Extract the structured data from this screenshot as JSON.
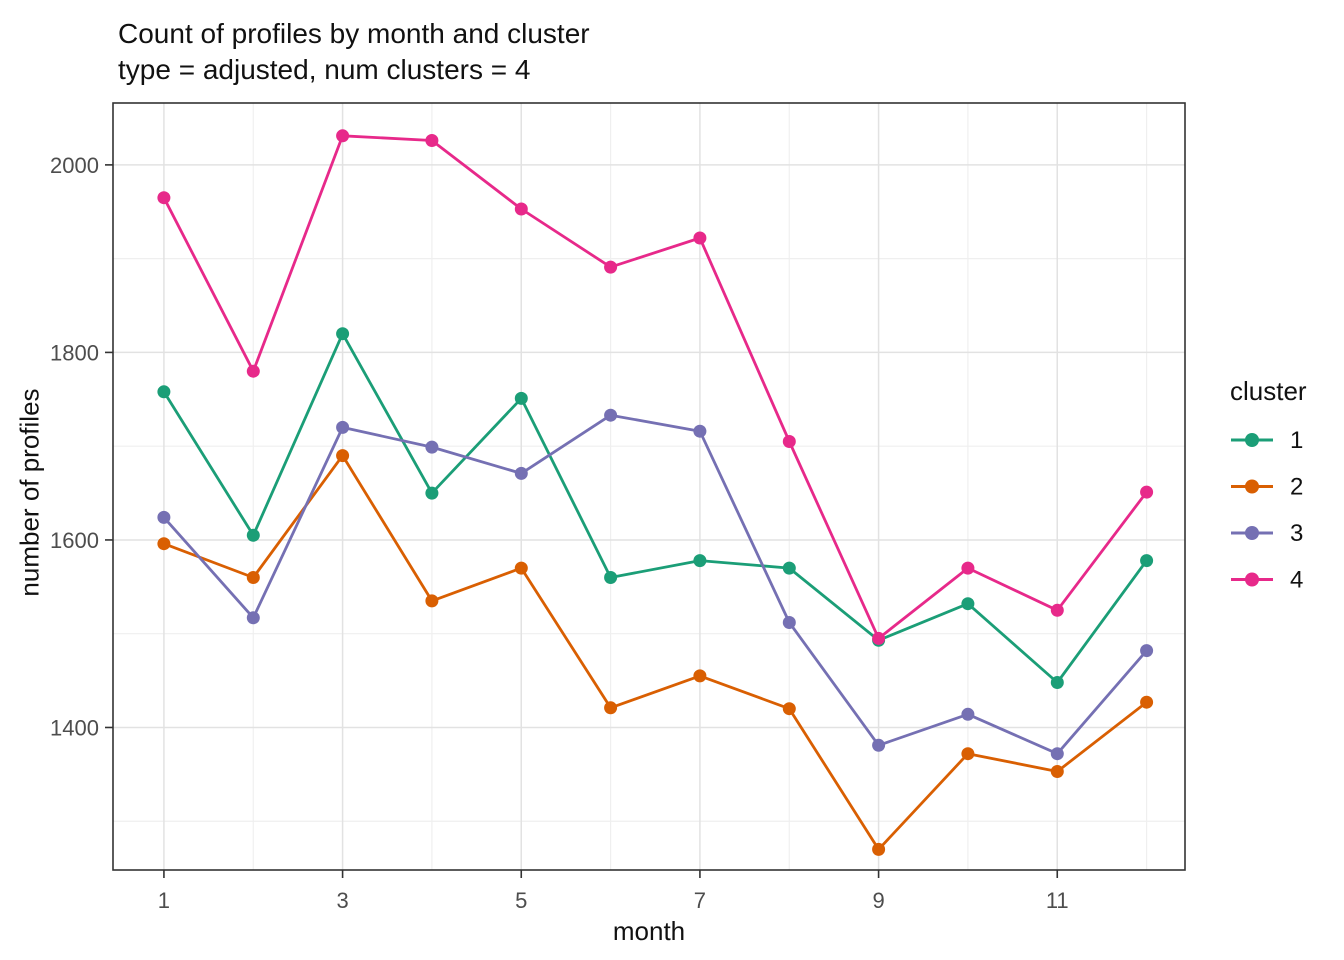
{
  "title": {
    "line1": "Count of profiles by month and cluster",
    "line2": "type = adjusted, num clusters = 4"
  },
  "chart_data": {
    "type": "line",
    "title": "Count of profiles by month and cluster",
    "subtitle": "type = adjusted, num clusters = 4",
    "xlabel": "month",
    "ylabel": "number of profiles",
    "legend_title": "cluster",
    "legend_position": "right",
    "grid": true,
    "x": [
      1,
      2,
      3,
      4,
      5,
      6,
      7,
      8,
      9,
      10,
      11,
      12
    ],
    "x_major_ticks": [
      1,
      3,
      5,
      7,
      9,
      11
    ],
    "x_minor_gridlines": [
      2,
      4,
      6,
      8,
      10,
      12
    ],
    "y_major_ticks": [
      2000,
      1800,
      1600,
      1400
    ],
    "y_minor_gridlines": [
      1900,
      1700,
      1500,
      1300
    ],
    "xlim": [
      0.43,
      12.43
    ],
    "ylim": [
      1248,
      2066
    ],
    "series": [
      {
        "name": "1",
        "color": "#1B9E77",
        "values": [
          1758,
          1605,
          1820,
          1650,
          1751,
          1560,
          1578,
          1570,
          1493,
          1532,
          1448,
          1578
        ]
      },
      {
        "name": "2",
        "color": "#D95F02",
        "values": [
          1596,
          1560,
          1690,
          1535,
          1570,
          1421,
          1455,
          1420,
          1270,
          1372,
          1353,
          1427
        ]
      },
      {
        "name": "3",
        "color": "#7570B3",
        "values": [
          1624,
          1517,
          1720,
          1699,
          1671,
          1733,
          1716,
          1512,
          1381,
          1414,
          1372,
          1482
        ]
      },
      {
        "name": "4",
        "color": "#E7298A",
        "values": [
          1965,
          1780,
          2031,
          2026,
          1953,
          1891,
          1922,
          1705,
          1495,
          1570,
          1525,
          1651
        ]
      }
    ]
  },
  "style_colors": {
    "panel_border": "#333333",
    "tick_mark": "#333333",
    "tick_label": "#4D4D4D",
    "grid_major": "#E2E2E2",
    "grid_minor": "#EFEFEF",
    "background": "#FFFFFF"
  }
}
